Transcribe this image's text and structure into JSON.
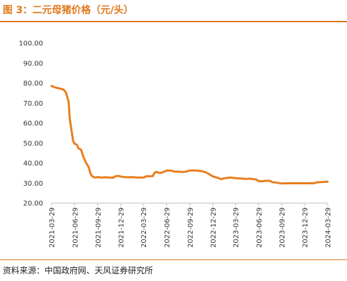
{
  "title": "图 3：二元母猪价格（元/头）",
  "source": "资料来源：中国政府网、天风证券研究所",
  "colors": {
    "accent": "#E0781A",
    "line": "#E87E1E",
    "axis": "#BFBFBF",
    "text": "#333333"
  },
  "chart_data": {
    "type": "line",
    "title": "",
    "xlabel": "",
    "ylabel": "",
    "ylim": [
      20,
      100
    ],
    "yticks": [
      "20.00",
      "30.00",
      "40.00",
      "50.00",
      "60.00",
      "70.00",
      "80.00",
      "90.00",
      "100.00"
    ],
    "xlim": [
      "2021-03-29",
      "2024-03-29"
    ],
    "xticks": [
      "2021-03-29",
      "2021-06-29",
      "2021-09-29",
      "2021-12-29",
      "2022-03-29",
      "2022-06-29",
      "2022-09-29",
      "2022-12-29",
      "2023-03-29",
      "2023-06-29",
      "2023-09-29",
      "2023-12-29",
      "2024-03-29"
    ],
    "grid": false,
    "legend": "none",
    "series": [
      {
        "points": [
          [
            "2021-03-29",
            78.6
          ],
          [
            "2021-04-09",
            78.0
          ],
          [
            "2021-04-20",
            77.6
          ],
          [
            "2021-05-01",
            77.3
          ],
          [
            "2021-05-15",
            76.8
          ],
          [
            "2021-05-25",
            75.5
          ],
          [
            "2021-06-05",
            71.0
          ],
          [
            "2021-06-10",
            62.0
          ],
          [
            "2021-06-17",
            56.0
          ],
          [
            "2021-06-23",
            51.0
          ],
          [
            "2021-06-29",
            49.7
          ],
          [
            "2021-07-08",
            49.2
          ],
          [
            "2021-07-14",
            47.3
          ],
          [
            "2021-07-24",
            46.8
          ],
          [
            "2021-08-03",
            43.0
          ],
          [
            "2021-08-14",
            40.0
          ],
          [
            "2021-08-24",
            38.0
          ],
          [
            "2021-08-30",
            35.0
          ],
          [
            "2021-09-06",
            33.5
          ],
          [
            "2021-09-16",
            32.8
          ],
          [
            "2021-09-29",
            33.0
          ],
          [
            "2021-10-12",
            32.8
          ],
          [
            "2021-10-27",
            32.9
          ],
          [
            "2021-11-17",
            32.8
          ],
          [
            "2021-11-29",
            32.7
          ],
          [
            "2021-12-09",
            33.5
          ],
          [
            "2021-12-20",
            33.6
          ],
          [
            "2021-12-29",
            33.3
          ],
          [
            "2022-01-12",
            33.0
          ],
          [
            "2022-01-31",
            32.9
          ],
          [
            "2022-02-15",
            33.0
          ],
          [
            "2022-03-01",
            32.8
          ],
          [
            "2022-03-29",
            32.8
          ],
          [
            "2022-04-13",
            33.5
          ],
          [
            "2022-04-25",
            33.4
          ],
          [
            "2022-05-05",
            33.5
          ],
          [
            "2022-05-14",
            35.4
          ],
          [
            "2022-05-21",
            35.6
          ],
          [
            "2022-06-02",
            35.0
          ],
          [
            "2022-06-15",
            35.5
          ],
          [
            "2022-06-29",
            36.2
          ],
          [
            "2022-07-14",
            36.3
          ],
          [
            "2022-07-29",
            35.8
          ],
          [
            "2022-08-13",
            35.7
          ],
          [
            "2022-09-05",
            35.6
          ],
          [
            "2022-09-16",
            35.8
          ],
          [
            "2022-09-29",
            36.3
          ],
          [
            "2022-10-21",
            36.3
          ],
          [
            "2022-11-15",
            36.0
          ],
          [
            "2022-12-01",
            35.4
          ],
          [
            "2022-12-15",
            34.5
          ],
          [
            "2022-12-29",
            33.4
          ],
          [
            "2023-01-17",
            32.7
          ],
          [
            "2023-01-31",
            32.0
          ],
          [
            "2023-02-17",
            32.5
          ],
          [
            "2023-03-10",
            32.8
          ],
          [
            "2023-03-29",
            32.5
          ],
          [
            "2023-04-20",
            32.3
          ],
          [
            "2023-05-10",
            32.1
          ],
          [
            "2023-05-26",
            32.2
          ],
          [
            "2023-06-20",
            31.8
          ],
          [
            "2023-06-29",
            31.0
          ],
          [
            "2023-07-14",
            30.9
          ],
          [
            "2023-07-29",
            31.2
          ],
          [
            "2023-08-14",
            31.1
          ],
          [
            "2023-08-22",
            30.5
          ],
          [
            "2023-09-10",
            30.2
          ],
          [
            "2023-09-29",
            29.8
          ],
          [
            "2023-10-17",
            29.9
          ],
          [
            "2023-11-13",
            29.9
          ],
          [
            "2023-12-10",
            29.9
          ],
          [
            "2023-12-29",
            29.9
          ],
          [
            "2024-01-20",
            29.9
          ],
          [
            "2024-02-05",
            29.9
          ],
          [
            "2024-02-15",
            30.4
          ],
          [
            "2024-03-05",
            30.5
          ],
          [
            "2024-03-29",
            30.7
          ]
        ]
      }
    ]
  }
}
